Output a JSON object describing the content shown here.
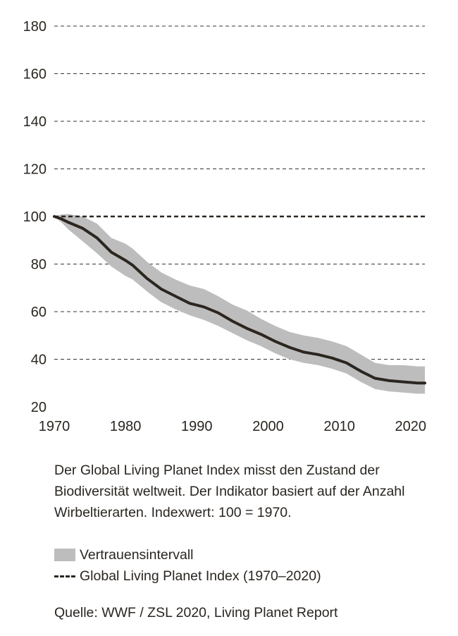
{
  "chart_data": {
    "type": "line",
    "xlim": [
      1970,
      2022
    ],
    "ylim": [
      20,
      180
    ],
    "yticks": [
      20,
      40,
      60,
      80,
      100,
      120,
      140,
      160,
      180
    ],
    "xticks": [
      1970,
      1980,
      1990,
      2000,
      2010,
      2020
    ],
    "grid": "horizontal-dashed",
    "reference_line": 100,
    "x": [
      1970,
      1971,
      1972,
      1974,
      1976,
      1978,
      1980,
      1981,
      1983,
      1985,
      1987,
      1989,
      1991,
      1993,
      1995,
      1997,
      1999,
      2001,
      2003,
      2005,
      2007,
      2009,
      2011,
      2013,
      2015,
      2017,
      2019,
      2021,
      2022
    ],
    "series": [
      {
        "name": "Global Living Planet Index (1970–2020)",
        "values": [
          100,
          99,
          97.5,
          95,
          91,
          85,
          81.5,
          79.5,
          74,
          69.5,
          66.5,
          63.5,
          62,
          59.5,
          56,
          53,
          50.5,
          47.5,
          45,
          43,
          42,
          40.5,
          38.5,
          35,
          32,
          31,
          30.5,
          30,
          30
        ]
      }
    ],
    "confidence_band": {
      "name": "Vertrauensintervall",
      "upper": [
        100,
        100.8,
        101,
        100,
        97,
        91,
        88.5,
        86.5,
        81,
        76.5,
        73.5,
        71,
        69.5,
        66.5,
        63,
        60.5,
        57,
        54,
        51.5,
        50,
        49,
        47.5,
        45.5,
        42,
        38.5,
        37.5,
        37.5,
        37,
        37
      ],
      "lower": [
        100,
        97.5,
        94.5,
        89.5,
        84.5,
        79,
        75,
        73.5,
        68.5,
        64,
        61,
        58.5,
        56.5,
        54,
        51,
        48,
        45.5,
        42.5,
        40,
        38.5,
        37.5,
        36,
        34,
        30.5,
        27.5,
        26.5,
        26,
        25.5,
        25.5
      ]
    }
  },
  "caption": "Der Global Living Planet Index misst den Zustand der Biodiversität weltweit. Der Indikator basiert auf der Anzahl Wirbeltierarten. Indexwert: 100 = 1970.",
  "legend": {
    "band_label": "Vertrauensintervall",
    "line_label": "Global Living Planet Index (1970–2020)"
  },
  "source": "Quelle: WWF / ZSL 2020, Living Planet Report",
  "colors": {
    "band": "#bdbdbd",
    "line": "#2c2620",
    "grid": "#3a3530",
    "text": "#2a2520"
  }
}
